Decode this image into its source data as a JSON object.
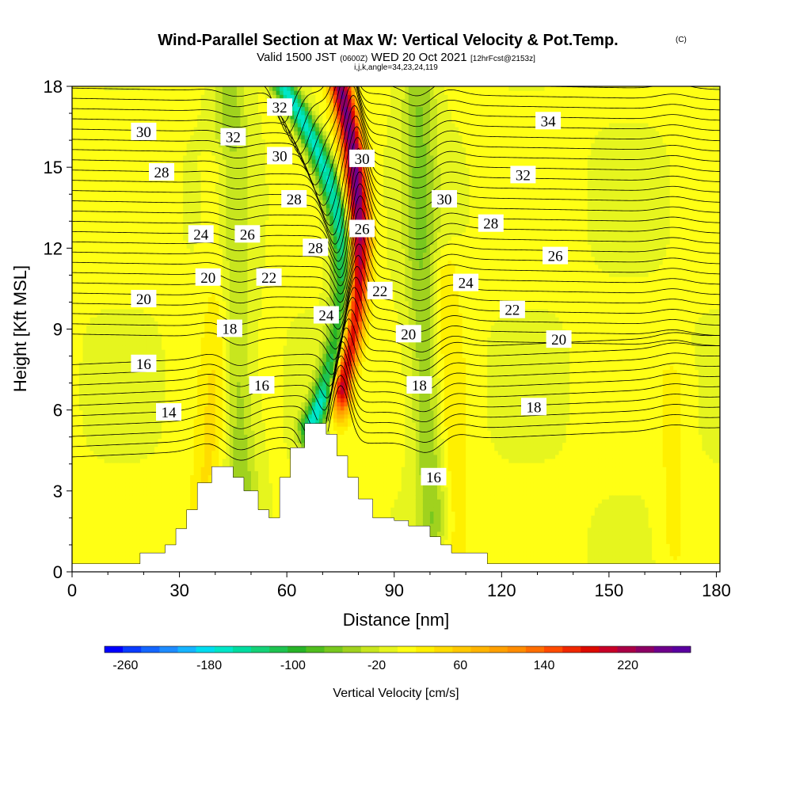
{
  "title": {
    "main": "Wind-Parallel Section at Max W: Vertical Velocity & Pot.Temp.",
    "copyright": "(C)",
    "valid_prefix": "Valid 1500 JST",
    "valid_utc": "(0600Z)",
    "valid_date": "WED 20 Oct 2021",
    "forecast": "[12hrFcst@2153z]",
    "indices": "i,j,k,angle=34,23,24,119"
  },
  "chart_data": {
    "type": "heatmap",
    "xlabel": "Distance [nm]",
    "ylabel": "Height [Kft MSL]",
    "xlim": [
      0,
      181
    ],
    "ylim": [
      0,
      18
    ],
    "x_ticks": [
      "0",
      "30",
      "60",
      "90",
      "120",
      "150",
      "180"
    ],
    "y_ticks": [
      "0",
      "3",
      "6",
      "9",
      "12",
      "15",
      "18"
    ],
    "colorbar": {
      "title": "Vertical Velocity [cm/s]",
      "tick_labels": [
        "-260",
        "-180",
        "-100",
        "-20",
        "60",
        "140",
        "220"
      ],
      "min": -280,
      "max": 280,
      "colors": [
        "#0000ff",
        "#0a3cff",
        "#1466ff",
        "#1e8cff",
        "#16b4ff",
        "#00dcf0",
        "#00e6c8",
        "#00dca0",
        "#14d278",
        "#1ec350",
        "#28b428",
        "#50be1e",
        "#78c81e",
        "#a0d21e",
        "#c8e61e",
        "#e6f51e",
        "#ffff14",
        "#fff000",
        "#ffdc00",
        "#ffc800",
        "#ffb400",
        "#ffa000",
        "#ff8c00",
        "#ff6e00",
        "#ff4b00",
        "#f02800",
        "#dc0a00",
        "#c80028",
        "#aa0046",
        "#8c0064",
        "#6e008c",
        "#5a00a0"
      ]
    },
    "terrain_profile": {
      "x": [
        0,
        19,
        19,
        26,
        26,
        29,
        29,
        32,
        32,
        35,
        35,
        39,
        39,
        45,
        45,
        48,
        48,
        52,
        52,
        55,
        55,
        58,
        58,
        61,
        61,
        65,
        65,
        71,
        71,
        74,
        74,
        77,
        77,
        80,
        80,
        84,
        84,
        90,
        90,
        94,
        94,
        100,
        100,
        103,
        103,
        106,
        106,
        116,
        116,
        181
      ],
      "height_kft": [
        0.3,
        0.3,
        0.7,
        0.7,
        1.0,
        1.0,
        1.6,
        1.6,
        2.3,
        2.3,
        3.3,
        3.3,
        3.9,
        3.9,
        3.5,
        3.5,
        3.0,
        3.0,
        2.3,
        2.3,
        2.0,
        2.0,
        3.5,
        3.5,
        4.6,
        4.6,
        5.5,
        5.5,
        5.1,
        5.1,
        4.3,
        4.3,
        3.5,
        3.5,
        2.7,
        2.7,
        2.0,
        2.0,
        1.9,
        1.9,
        1.7,
        1.7,
        1.3,
        1.3,
        1.0,
        1.0,
        0.7,
        0.7,
        0.3,
        0.3
      ]
    },
    "velocity_features": [
      {
        "name": "strong downdraft band",
        "w": -170,
        "x0": 67,
        "x1": 76,
        "x2": 59,
        "z0": 5.5,
        "z2": 18
      },
      {
        "name": "strong updraft band",
        "w": 245,
        "x0": 75,
        "x1": 80,
        "x2": 75,
        "z0": 7.0,
        "z2": 18
      },
      {
        "name": "downdraft west ridge",
        "w": -50,
        "x0": 48,
        "x1": 45,
        "x2": 44,
        "z0": 2.0,
        "z2": 18
      },
      {
        "name": "downdraft lee",
        "w": -55,
        "x0": 101,
        "x1": 98,
        "x2": 97,
        "z0": 2.0,
        "z2": 18
      },
      {
        "name": "updraft west",
        "w": 35,
        "x0": 36,
        "x1": 41,
        "x2": 42,
        "z0": 2.0,
        "z2": 15
      },
      {
        "name": "updraft east",
        "w": 30,
        "x0": 107,
        "x1": 106,
        "x2": 104,
        "z0": 1.0,
        "z2": 11
      },
      {
        "name": "updraft far east",
        "w": 20,
        "x0": 168,
        "x1": 168,
        "x2": 168,
        "z0": 1.0,
        "z2": 7
      }
    ],
    "pot_temp_labels": [
      {
        "text": "30",
        "x": 20,
        "z": 16.3
      },
      {
        "text": "28",
        "x": 25,
        "z": 14.8
      },
      {
        "text": "20",
        "x": 20,
        "z": 10.1
      },
      {
        "text": "16",
        "x": 20,
        "z": 7.7
      },
      {
        "text": "14",
        "x": 27,
        "z": 5.9
      },
      {
        "text": "32",
        "x": 45,
        "z": 16.1
      },
      {
        "text": "24",
        "x": 36,
        "z": 12.5
      },
      {
        "text": "20",
        "x": 38,
        "z": 10.9
      },
      {
        "text": "18",
        "x": 44,
        "z": 9.0
      },
      {
        "text": "26",
        "x": 49,
        "z": 12.5
      },
      {
        "text": "22",
        "x": 55,
        "z": 10.9
      },
      {
        "text": "16",
        "x": 53,
        "z": 6.9
      },
      {
        "text": "32",
        "x": 58,
        "z": 17.2
      },
      {
        "text": "30",
        "x": 58,
        "z": 15.4
      },
      {
        "text": "28",
        "x": 62,
        "z": 13.8
      },
      {
        "text": "28",
        "x": 68,
        "z": 12.0
      },
      {
        "text": "24",
        "x": 71,
        "z": 9.5
      },
      {
        "text": "30",
        "x": 81,
        "z": 15.3
      },
      {
        "text": "26",
        "x": 81,
        "z": 12.7
      },
      {
        "text": "22",
        "x": 86,
        "z": 10.4
      },
      {
        "text": "20",
        "x": 94,
        "z": 8.8
      },
      {
        "text": "18",
        "x": 97,
        "z": 6.9
      },
      {
        "text": "16",
        "x": 101,
        "z": 3.5
      },
      {
        "text": "30",
        "x": 104,
        "z": 13.8
      },
      {
        "text": "28",
        "x": 117,
        "z": 12.9
      },
      {
        "text": "24",
        "x": 110,
        "z": 10.7
      },
      {
        "text": "22",
        "x": 123,
        "z": 9.7
      },
      {
        "text": "20",
        "x": 136,
        "z": 8.6
      },
      {
        "text": "18",
        "x": 129,
        "z": 6.1
      },
      {
        "text": "34",
        "x": 133,
        "z": 16.7
      },
      {
        "text": "32",
        "x": 126,
        "z": 14.7
      },
      {
        "text": "26",
        "x": 135,
        "z": 11.7
      }
    ]
  }
}
